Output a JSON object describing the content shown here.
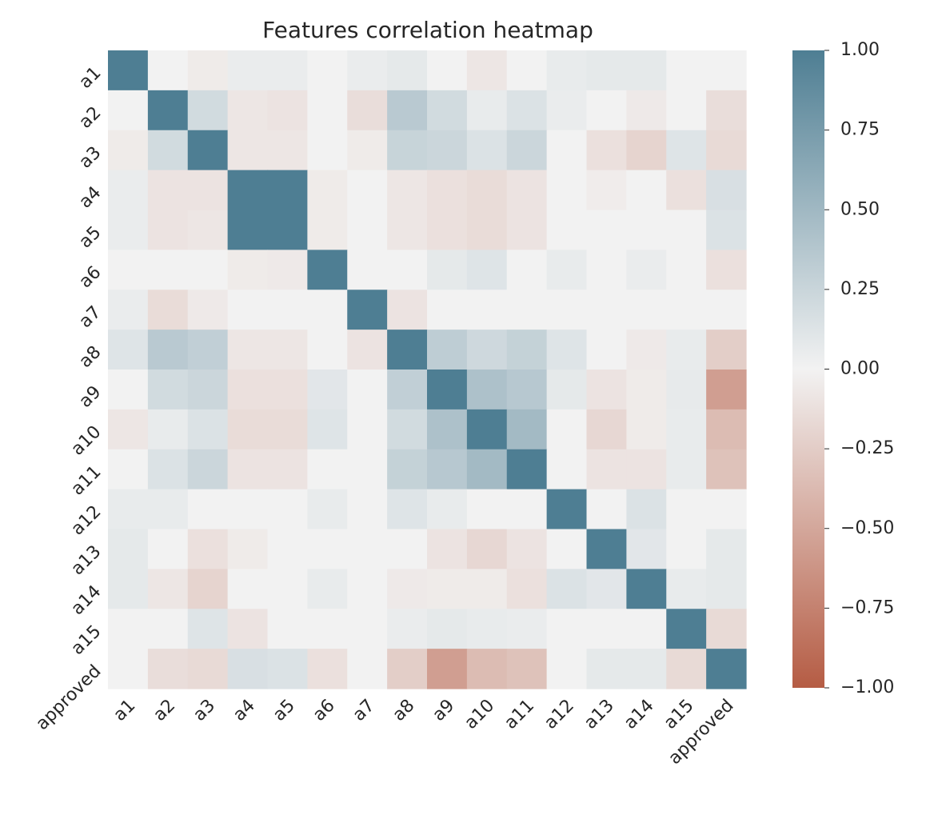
{
  "chart_data": {
    "type": "heatmap",
    "title": "Features correlation heatmap",
    "labels": [
      "a1",
      "a2",
      "a3",
      "a4",
      "a5",
      "a6",
      "a7",
      "a8",
      "a9",
      "a10",
      "a11",
      "a12",
      "a13",
      "a14",
      "a15",
      "approved"
    ],
    "matrix": [
      [
        1.0,
        0.0,
        -0.05,
        0.05,
        0.05,
        0.0,
        0.05,
        0.08,
        0.0,
        -0.08,
        0.0,
        0.06,
        0.08,
        0.08,
        0.0,
        0.0
      ],
      [
        0.0,
        1.0,
        0.2,
        -0.08,
        -0.1,
        0.0,
        -0.14,
        0.35,
        0.2,
        0.06,
        0.14,
        0.05,
        0.0,
        -0.06,
        0.0,
        -0.14
      ],
      [
        -0.05,
        0.2,
        1.0,
        -0.08,
        -0.08,
        0.0,
        -0.05,
        0.26,
        0.24,
        0.14,
        0.24,
        0.0,
        -0.12,
        -0.2,
        0.12,
        -0.16
      ],
      [
        0.05,
        -0.1,
        -0.1,
        1.0,
        1.0,
        -0.05,
        0.0,
        -0.08,
        -0.12,
        -0.15,
        -0.1,
        0.0,
        -0.04,
        0.0,
        -0.12,
        0.16
      ],
      [
        0.05,
        -0.1,
        -0.08,
        1.0,
        1.0,
        -0.05,
        0.0,
        -0.08,
        -0.12,
        -0.15,
        -0.1,
        0.0,
        0.0,
        0.0,
        0.0,
        0.14
      ],
      [
        0.0,
        0.0,
        0.0,
        -0.05,
        -0.06,
        1.0,
        0.0,
        0.0,
        0.08,
        0.12,
        0.0,
        0.06,
        0.0,
        0.05,
        0.0,
        -0.12
      ],
      [
        0.05,
        -0.15,
        -0.06,
        0.0,
        0.0,
        0.0,
        1.0,
        -0.1,
        0.0,
        0.0,
        0.0,
        0.0,
        0.0,
        0.0,
        0.0,
        0.0
      ],
      [
        0.12,
        0.35,
        0.3,
        -0.08,
        -0.08,
        0.0,
        -0.1,
        1.0,
        0.32,
        0.22,
        0.28,
        0.12,
        0.0,
        -0.06,
        0.06,
        -0.24
      ],
      [
        0.0,
        0.2,
        0.24,
        -0.12,
        -0.12,
        0.1,
        0.0,
        0.3,
        1.0,
        0.42,
        0.36,
        0.08,
        -0.1,
        -0.05,
        0.07,
        -0.56
      ],
      [
        -0.08,
        0.06,
        0.14,
        -0.15,
        -0.15,
        0.12,
        0.0,
        0.2,
        0.42,
        1.0,
        0.48,
        0.0,
        -0.18,
        -0.05,
        0.06,
        -0.36
      ],
      [
        0.0,
        0.14,
        0.24,
        -0.1,
        -0.1,
        0.0,
        0.0,
        0.28,
        0.36,
        0.48,
        1.0,
        0.0,
        -0.1,
        -0.1,
        0.06,
        -0.32
      ],
      [
        0.06,
        0.06,
        0.0,
        0.0,
        0.0,
        0.06,
        0.0,
        0.12,
        0.06,
        0.0,
        0.0,
        1.0,
        0.0,
        0.14,
        0.0,
        0.0
      ],
      [
        0.08,
        0.0,
        -0.12,
        -0.05,
        0.0,
        0.0,
        0.0,
        0.0,
        -0.1,
        -0.18,
        -0.1,
        0.0,
        1.0,
        0.1,
        0.0,
        0.08
      ],
      [
        0.08,
        -0.08,
        -0.2,
        0.0,
        0.0,
        0.06,
        0.0,
        -0.06,
        -0.05,
        -0.05,
        -0.12,
        0.14,
        0.1,
        1.0,
        0.06,
        0.08
      ],
      [
        0.0,
        0.0,
        0.12,
        -0.1,
        0.0,
        0.0,
        0.0,
        0.05,
        0.08,
        0.06,
        0.05,
        0.0,
        0.0,
        0.0,
        1.0,
        -0.16
      ],
      [
        0.0,
        -0.14,
        -0.16,
        0.16,
        0.14,
        -0.12,
        0.0,
        -0.24,
        -0.56,
        -0.36,
        -0.32,
        0.0,
        0.08,
        0.08,
        -0.16,
        1.0
      ]
    ],
    "colorbar": {
      "min": -1.0,
      "max": 1.0,
      "ticks": [
        "1.00",
        "0.75",
        "0.50",
        "0.25",
        "0.00",
        "−0.25",
        "−0.50",
        "−0.75",
        "−1.00"
      ]
    },
    "colors": {
      "positive": "#4e7e93",
      "neutral": "#f2f2f2",
      "negative": "#b55c44"
    }
  }
}
